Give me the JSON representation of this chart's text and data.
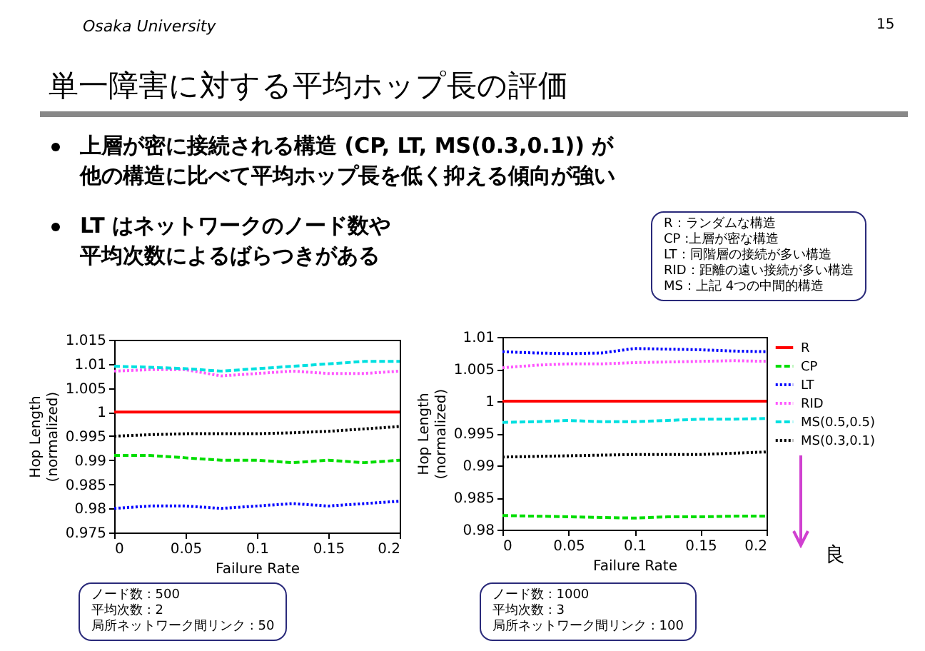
{
  "chart_data": [
    {
      "type": "line",
      "title": "単一障害に対する平均ホップ長の評価",
      "xlabel": "Failure Rate",
      "ylabel": "Hop Length (normalized)",
      "x": [
        0,
        0.025,
        0.05,
        0.075,
        0.1,
        0.125,
        0.15,
        0.175,
        0.2
      ],
      "series": [
        {
          "color": "#ff0000",
          "line_style": "solid",
          "values": [
            1,
            1,
            1,
            1,
            1,
            1,
            1,
            1,
            1
          ]
        },
        {
          "color": "#00dd00",
          "line_style": "dashed",
          "values": [
            0.991,
            0.991,
            0.9905,
            0.99,
            0.99,
            0.9895,
            0.99,
            0.9895,
            0.99
          ]
        },
        {
          "color": "#0000ff",
          "line_style": "dotted",
          "values": [
            0.98,
            0.9805,
            0.9805,
            0.98,
            0.9805,
            0.981,
            0.9805,
            0.981,
            0.9815
          ]
        },
        {
          "color": "#ff55ff",
          "line_style": "dotted",
          "values": [
            1.0085,
            1.0088,
            1.0088,
            1.0075,
            1.008,
            1.0085,
            1.008,
            1.008,
            1.0085
          ]
        },
        {
          "color": "#00e0e0",
          "line_style": "dashed",
          "values": [
            1.0095,
            1.0093,
            1.009,
            1.0085,
            1.009,
            1.0095,
            1.01,
            1.0105,
            1.0105
          ]
        },
        {
          "color": "#000000",
          "line_style": "dotted",
          "values": [
            0.995,
            0.9953,
            0.9955,
            0.9955,
            0.9955,
            0.9957,
            0.996,
            0.9965,
            0.997
          ]
        }
      ],
      "xlim": [
        0,
        0.2
      ],
      "xticks": [
        0,
        0.05,
        0.1,
        0.15,
        0.2
      ],
      "ylim": [
        0.975,
        1.015
      ],
      "yticks": [
        0.975,
        0.98,
        0.985,
        0.99,
        0.995,
        1,
        1.005,
        1.01,
        1.015
      ],
      "legend": false,
      "marker": "none",
      "annotations": [
        "Osaka University",
        "15",
        "上層が密に接続される構造 (CP, LT, MS(0.3,0.1)) が",
        "他の構造に比べて平均ホップ長を低く抑える傾向が強い",
        "LT はネットワークのノード数や",
        "平均次数によるばらつきがある",
        "R：ランダムな構造",
        "CP :上層が密な構造",
        "LT：同階層の接続が多い構造",
        "RID：距離の遠い接続が多い構造",
        "MS：上記 4つの中間的構造",
        "ノード数 : 500",
        "平均次数 : 2",
        "局所ネットワーク間リンク : 50"
      ]
    },
    {
      "type": "line",
      "xlabel": "Failure Rate",
      "ylabel": "Hop Length (normalized)",
      "x": [
        0,
        0.025,
        0.05,
        0.075,
        0.1,
        0.125,
        0.15,
        0.175,
        0.2
      ],
      "series": [
        {
          "name": "R",
          "color": "#ff0000",
          "line_style": "solid",
          "values": [
            1,
            1,
            1,
            1,
            1,
            1,
            1,
            1,
            1
          ]
        },
        {
          "name": "CP",
          "color": "#00dd00",
          "line_style": "dashed",
          "values": [
            0.9822,
            0.9821,
            0.982,
            0.9819,
            0.9818,
            0.982,
            0.982,
            0.9821,
            0.9821
          ]
        },
        {
          "name": "LT",
          "color": "#0000ff",
          "line_style": "dotted",
          "values": [
            1.0077,
            1.0075,
            1.0074,
            1.0075,
            1.0082,
            1.0081,
            1.008,
            1.0078,
            1.0077
          ]
        },
        {
          "name": "RID",
          "color": "#ff55ff",
          "line_style": "dotted",
          "values": [
            1.0052,
            1.0056,
            1.0058,
            1.0058,
            1.006,
            1.0061,
            1.0062,
            1.0063,
            1.0062
          ]
        },
        {
          "name": "MS(0.5,0.5)",
          "color": "#00e0e0",
          "line_style": "dashed",
          "values": [
            0.9967,
            0.9968,
            0.997,
            0.9968,
            0.9968,
            0.997,
            0.9972,
            0.9972,
            0.9973
          ]
        },
        {
          "name": "MS(0.3,0.1)",
          "color": "#000000",
          "line_style": "dotted",
          "values": [
            0.9913,
            0.9914,
            0.9915,
            0.9916,
            0.9917,
            0.9917,
            0.9917,
            0.9919,
            0.9921
          ]
        }
      ],
      "xlim": [
        0,
        0.2
      ],
      "xticks": [
        0,
        0.05,
        0.1,
        0.15,
        0.2
      ],
      "ylim": [
        0.98,
        1.01
      ],
      "yticks": [
        0.98,
        0.985,
        0.99,
        0.995,
        1,
        1.005,
        1.01
      ],
      "legend": "right",
      "marker": "none",
      "annotations": [
        "ノード数 : 1000",
        "平均次数 : 3",
        "局所ネットワーク間リンク : 100",
        "良"
      ]
    }
  ]
}
